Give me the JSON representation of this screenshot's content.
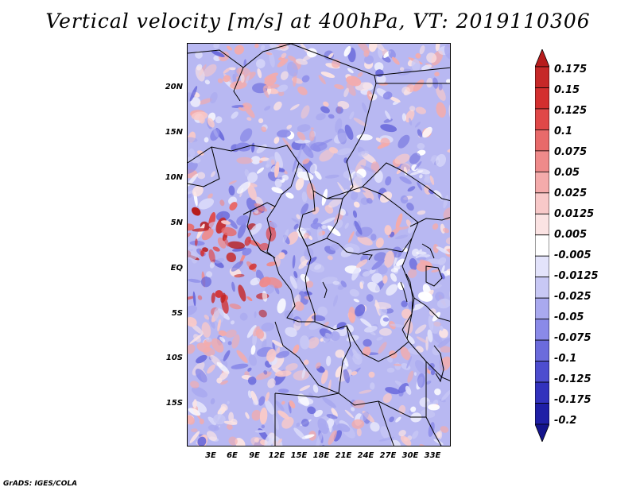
{
  "title": "Vertical velocity [m/s] at 400hPa, VT: 2019110306",
  "footer": "GrADS: IGES/COLA",
  "map": {
    "lat_labels": [
      "20N",
      "15N",
      "10N",
      "5N",
      "EQ",
      "5S",
      "10S",
      "15S"
    ],
    "lon_labels": [
      "3E",
      "6E",
      "9E",
      "12E",
      "15E",
      "18E",
      "21E",
      "24E",
      "27E",
      "30E",
      "33E"
    ]
  },
  "colorbar": {
    "labels": [
      "0.175",
      "0.15",
      "0.125",
      "0.1",
      "0.075",
      "0.05",
      "0.025",
      "0.0125",
      "0.005",
      "-0.005",
      "-0.0125",
      "-0.025",
      "-0.05",
      "-0.075",
      "-0.1",
      "-0.125",
      "-0.175",
      "-0.2"
    ],
    "colors": [
      "#b71c1c",
      "#c62828",
      "#d32f2f",
      "#e04848",
      "#e86a6a",
      "#ef8a8a",
      "#f4abab",
      "#f8c9c9",
      "#fbe3e3",
      "#ffffff",
      "#e3e3fb",
      "#c8c8f5",
      "#a9a9ef",
      "#8a8ae8",
      "#6b6bdc",
      "#4d4dcf",
      "#3232bd",
      "#1f1fa6",
      "#14148c"
    ]
  }
}
